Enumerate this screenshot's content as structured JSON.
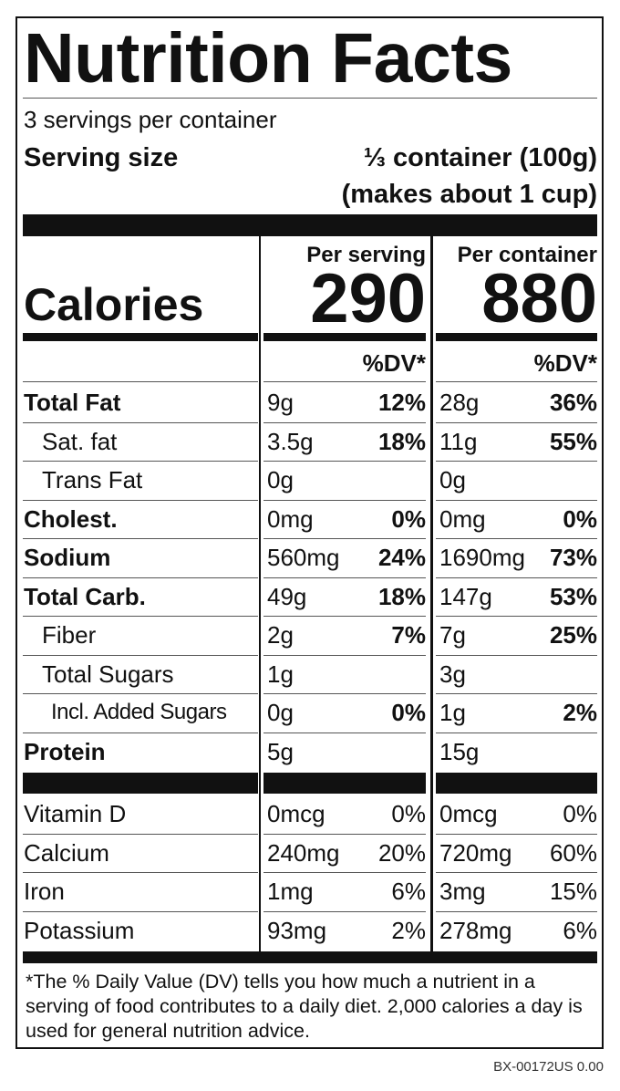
{
  "title": "Nutrition Facts",
  "servings": "3 servings per container",
  "serving_size": {
    "label": "Serving size",
    "value": "⅓ container (100g)",
    "note": "(makes about 1 cup)"
  },
  "calories": {
    "label": "Calories",
    "columns": [
      {
        "header": "Per serving",
        "value": "290",
        "dv_header": "%DV*"
      },
      {
        "header": "Per container",
        "value": "880",
        "dv_header": "%DV*"
      }
    ]
  },
  "nutrients": [
    {
      "name": "Total Fat",
      "per_serving": {
        "amount": "9g",
        "dv": "12%"
      },
      "per_container": {
        "amount": "28g",
        "dv": "36%"
      }
    },
    {
      "name": "Sat. fat",
      "per_serving": {
        "amount": "3.5g",
        "dv": "18%"
      },
      "per_container": {
        "amount": "11g",
        "dv": "55%"
      }
    },
    {
      "name": "Trans Fat",
      "per_serving": {
        "amount": "0g"
      },
      "per_container": {
        "amount": "0g"
      }
    },
    {
      "name": "Cholest.",
      "per_serving": {
        "amount": "0mg",
        "dv": "0%"
      },
      "per_container": {
        "amount": "0mg",
        "dv": "0%"
      }
    },
    {
      "name": "Sodium",
      "per_serving": {
        "amount": "560mg",
        "dv": "24%"
      },
      "per_container": {
        "amount": "1690mg",
        "dv": "73%"
      }
    },
    {
      "name": "Total Carb.",
      "per_serving": {
        "amount": "49g",
        "dv": "18%"
      },
      "per_container": {
        "amount": "147g",
        "dv": "53%"
      }
    },
    {
      "name": "Fiber",
      "per_serving": {
        "amount": "2g",
        "dv": "7%"
      },
      "per_container": {
        "amount": "7g",
        "dv": "25%"
      }
    },
    {
      "name": "Total Sugars",
      "per_serving": {
        "amount": "1g"
      },
      "per_container": {
        "amount": "3g"
      }
    },
    {
      "name": "Incl. Added Sugars",
      "per_serving": {
        "amount": "0g",
        "dv": "0%"
      },
      "per_container": {
        "amount": "1g",
        "dv": "2%"
      }
    },
    {
      "name": "Protein",
      "per_serving": {
        "amount": "5g"
      },
      "per_container": {
        "amount": "15g"
      }
    }
  ],
  "vitamins": [
    {
      "name": "Vitamin D",
      "per_serving": {
        "amount": "0mcg",
        "dv": "0%"
      },
      "per_container": {
        "amount": "0mcg",
        "dv": "0%"
      }
    },
    {
      "name": "Calcium",
      "per_serving": {
        "amount": "240mg",
        "dv": "20%"
      },
      "per_container": {
        "amount": "720mg",
        "dv": "60%"
      }
    },
    {
      "name": "Iron",
      "per_serving": {
        "amount": "1mg",
        "dv": "6%"
      },
      "per_container": {
        "amount": "3mg",
        "dv": "15%"
      }
    },
    {
      "name": "Potassium",
      "per_serving": {
        "amount": "93mg",
        "dv": "2%"
      },
      "per_container": {
        "amount": "278mg",
        "dv": "6%"
      }
    }
  ],
  "footnote": "*The % Daily Value (DV) tells you how much a nutrient in a serving of food contributes to a daily diet. 2,000 calories a day is used for general nutrition advice.",
  "code": "BX-00172US 0.00"
}
